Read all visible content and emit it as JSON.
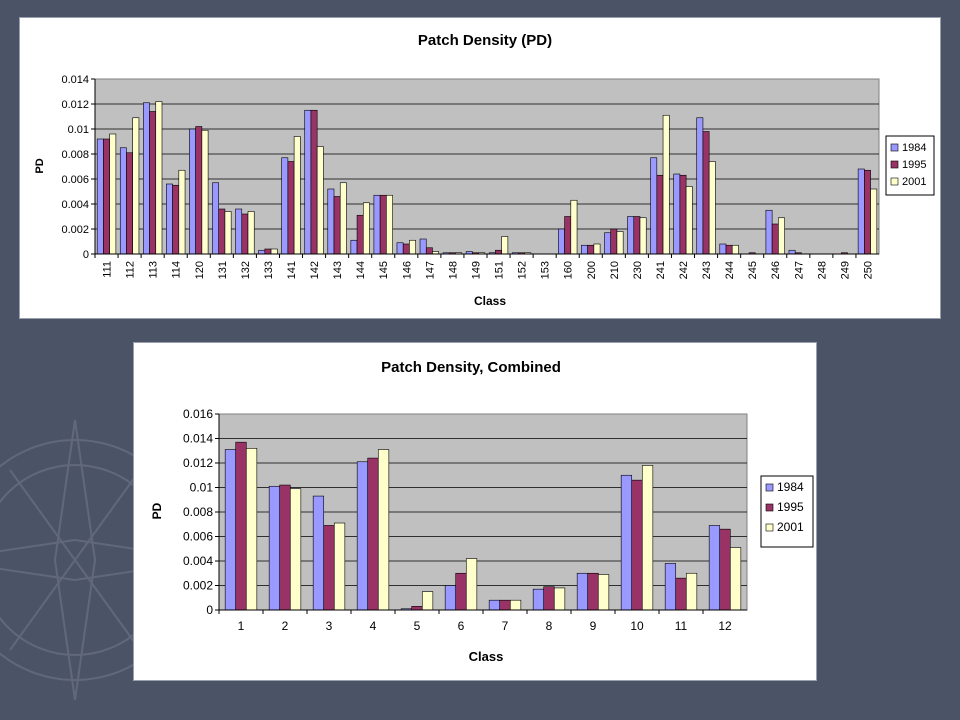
{
  "colors": {
    "background": "#4b5366",
    "plot_area": "#c0c0c0",
    "series_1984": "#9999ff",
    "series_1995": "#993366",
    "series_2001": "#ffffcc"
  },
  "chart_data": [
    {
      "type": "bar",
      "title": "Patch Density (PD)",
      "xlabel": "Class",
      "ylabel": "PD",
      "ylim": [
        0,
        0.014
      ],
      "yticks": [
        "0",
        "0.002",
        "0.004",
        "0.006",
        "0.008",
        "0.01",
        "0.012",
        "0.014"
      ],
      "grid": true,
      "legend_position": "right",
      "categories": [
        "111",
        "112",
        "113",
        "114",
        "120",
        "131",
        "132",
        "133",
        "141",
        "142",
        "143",
        "144",
        "145",
        "146",
        "147",
        "148",
        "149",
        "151",
        "152",
        "153",
        "160",
        "200",
        "210",
        "230",
        "241",
        "242",
        "243",
        "244",
        "245",
        "246",
        "247",
        "248",
        "249",
        "250"
      ],
      "series": [
        {
          "name": "1984",
          "values": [
            0.0092,
            0.0085,
            0.0121,
            0.0056,
            0.01,
            0.0057,
            0.0036,
            0.0003,
            0.0077,
            0.0115,
            0.0052,
            0.0011,
            0.0047,
            0.0009,
            0.0012,
            0.0001,
            0.0002,
            0.0001,
            0.0001,
            0.0,
            0.002,
            0.0007,
            0.0017,
            0.003,
            0.0077,
            0.0064,
            0.0109,
            0.0008,
            0.0,
            0.0035,
            0.0003,
            0.0,
            0.0,
            0.0068
          ]
        },
        {
          "name": "1995",
          "values": [
            0.0092,
            0.0081,
            0.0114,
            0.0055,
            0.0102,
            0.0036,
            0.0032,
            0.0004,
            0.0074,
            0.0115,
            0.0046,
            0.0031,
            0.0047,
            0.0008,
            0.0005,
            0.0001,
            0.0001,
            0.0003,
            0.0001,
            0.0,
            0.003,
            0.0007,
            0.002,
            0.003,
            0.0063,
            0.0063,
            0.0098,
            0.0007,
            0.0001,
            0.0024,
            0.0001,
            0.0,
            0.0001,
            0.0067
          ]
        },
        {
          "name": "2001",
          "values": [
            0.0096,
            0.0109,
            0.0122,
            0.0067,
            0.0099,
            0.0034,
            0.0034,
            0.0004,
            0.0094,
            0.0086,
            0.0057,
            0.0041,
            0.0047,
            0.0011,
            0.0002,
            0.0001,
            0.0001,
            0.0014,
            0.0001,
            0.0,
            0.0043,
            0.0008,
            0.0018,
            0.0029,
            0.0111,
            0.0054,
            0.0074,
            0.0007,
            0.0,
            0.0029,
            0.0,
            0.0,
            0.0,
            0.0052
          ]
        }
      ]
    },
    {
      "type": "bar",
      "title": "Patch Density, Combined",
      "xlabel": "Class",
      "ylabel": "PD",
      "ylim": [
        0,
        0.016
      ],
      "yticks": [
        "0",
        "0.002",
        "0.004",
        "0.006",
        "0.008",
        "0.01",
        "0.012",
        "0.014",
        "0.016"
      ],
      "grid": true,
      "legend_position": "right",
      "categories": [
        "1",
        "2",
        "3",
        "4",
        "5",
        "6",
        "7",
        "8",
        "9",
        "10",
        "11",
        "12"
      ],
      "series": [
        {
          "name": "1984",
          "values": [
            0.0131,
            0.0101,
            0.0093,
            0.0121,
            0.0001,
            0.002,
            0.0008,
            0.0017,
            0.003,
            0.011,
            0.0038,
            0.0069
          ]
        },
        {
          "name": "1995",
          "values": [
            0.0137,
            0.0102,
            0.0069,
            0.0124,
            0.0003,
            0.003,
            0.0008,
            0.0019,
            0.003,
            0.0106,
            0.0026,
            0.0066
          ]
        },
        {
          "name": "2001",
          "values": [
            0.0132,
            0.0099,
            0.0071,
            0.0131,
            0.0015,
            0.0042,
            0.0008,
            0.0018,
            0.0029,
            0.0118,
            0.003,
            0.0051
          ]
        }
      ]
    }
  ]
}
